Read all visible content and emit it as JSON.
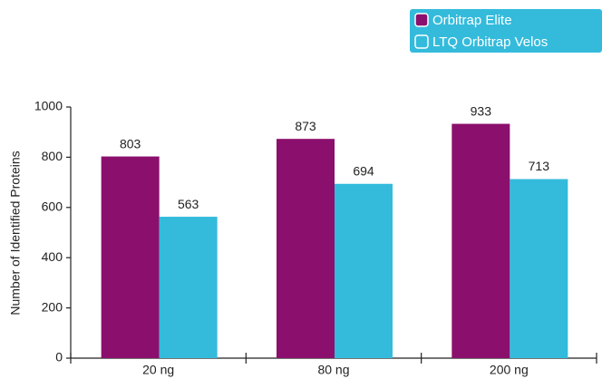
{
  "chart_data": {
    "type": "bar",
    "y_label": "Number of Identified Proteins",
    "categories": [
      "20 ng",
      "80 ng",
      "200 ng"
    ],
    "series": [
      {
        "name": "Orbitrap Elite",
        "color": "#8b0f6c",
        "values": [
          803,
          873,
          933
        ]
      },
      {
        "name": "LTQ Orbitrap Velos",
        "color": "#34bbdc",
        "values": [
          563,
          694,
          713
        ]
      }
    ],
    "ylim": [
      0,
      1000
    ],
    "yticks": [
      0,
      200,
      400,
      600,
      800,
      1000
    ],
    "legend": "top-right"
  }
}
